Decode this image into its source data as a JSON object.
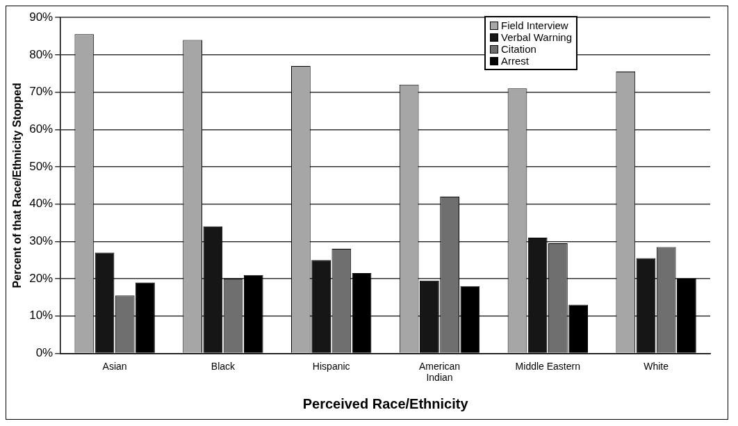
{
  "chart_data": {
    "type": "bar",
    "xlabel": "Perceived Race/Ethnicity",
    "ylabel": "Percent of that Race/Ethnicity Stopped",
    "categories": [
      "Asian",
      "Black",
      "Hispanic",
      "American\nIndian",
      "Middle Eastern",
      "White"
    ],
    "series": [
      {
        "name": "Field Interview",
        "color": "#a6a6a6",
        "values": [
          85.5,
          84,
          77,
          72,
          71,
          75.5
        ]
      },
      {
        "name": "Verbal Warning",
        "color": "#161616",
        "values": [
          27,
          34,
          25,
          19.5,
          31,
          25.5
        ]
      },
      {
        "name": "Citation",
        "color": "#6f6f6f",
        "values": [
          15.5,
          20,
          28,
          42,
          29.5,
          28.5
        ]
      },
      {
        "name": "Arrest",
        "color": "#000000",
        "values": [
          19,
          21,
          21.5,
          18,
          13,
          20
        ]
      }
    ],
    "ylim": [
      0,
      90
    ],
    "yticks": [
      {
        "value": 0,
        "label": "0%"
      },
      {
        "value": 10,
        "label": "10%"
      },
      {
        "value": 20,
        "label": "20%"
      },
      {
        "value": 30,
        "label": "30%"
      },
      {
        "value": 40,
        "label": "40%"
      },
      {
        "value": 50,
        "label": "50%"
      },
      {
        "value": 60,
        "label": "60%"
      },
      {
        "value": 70,
        "label": "70%"
      },
      {
        "value": 80,
        "label": "80%"
      },
      {
        "value": 90,
        "label": "90%"
      }
    ],
    "grid": "y",
    "legend": "top right"
  }
}
